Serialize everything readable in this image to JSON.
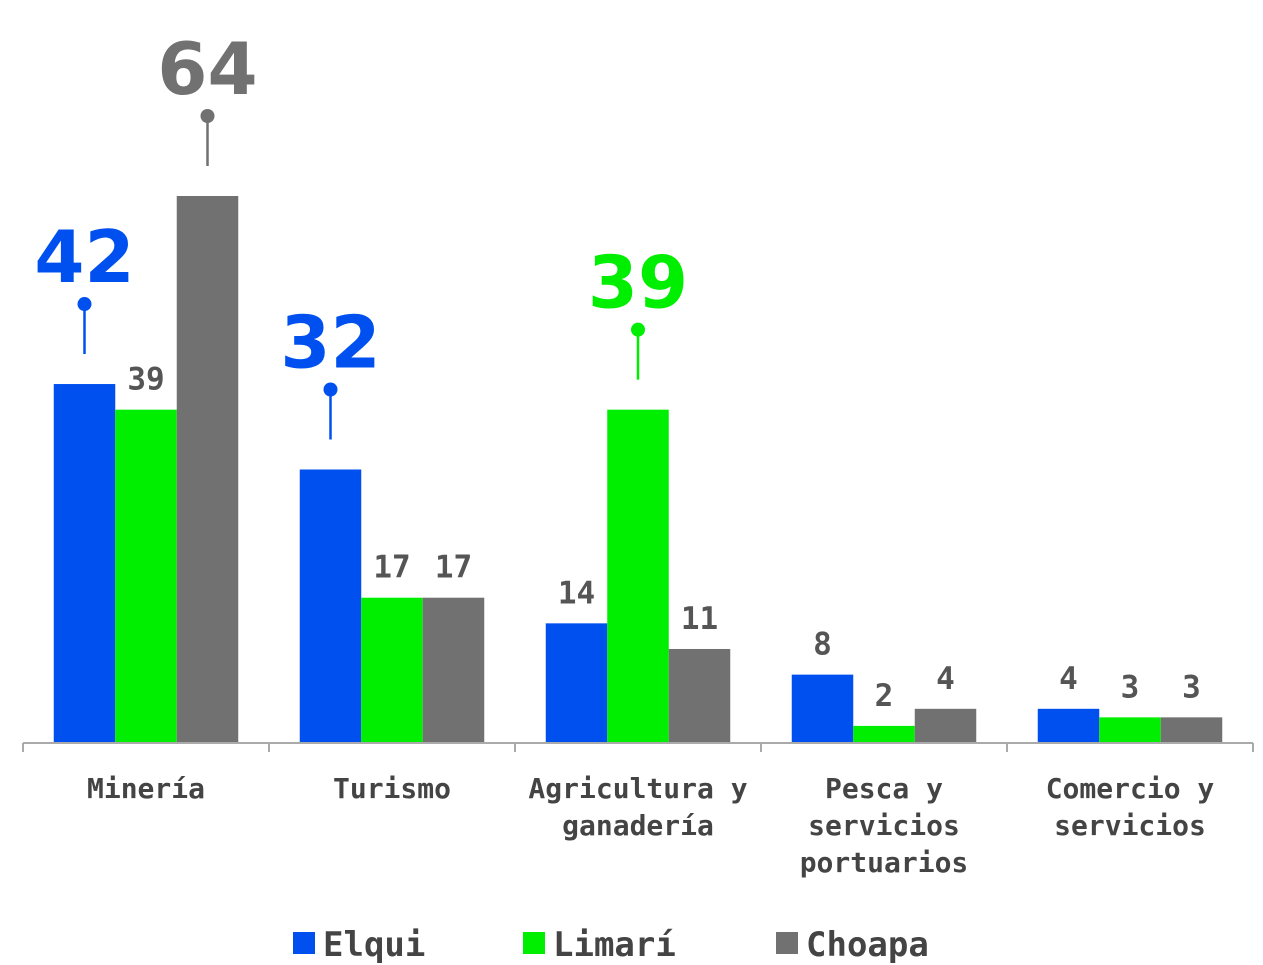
{
  "chart_data": {
    "type": "bar",
    "categories": [
      "Minería",
      "Turismo",
      "Agricultura y ganadería",
      "Pesca y servicios portuarios",
      "Comercio y servicios"
    ],
    "series": [
      {
        "name": "Elqui",
        "color": "#0050f0",
        "values": [
          42,
          32,
          14,
          8,
          4
        ],
        "highlight": [
          true,
          true,
          false,
          false,
          false
        ]
      },
      {
        "name": "Limarí",
        "color": "#00ee00",
        "values": [
          39,
          17,
          39,
          2,
          3
        ],
        "highlight": [
          false,
          false,
          true,
          false,
          false
        ]
      },
      {
        "name": "Choapa",
        "color": "#717171",
        "values": [
          64,
          17,
          11,
          4,
          3
        ],
        "highlight": [
          true,
          false,
          false,
          false,
          false
        ]
      }
    ],
    "legend": "bottom"
  }
}
